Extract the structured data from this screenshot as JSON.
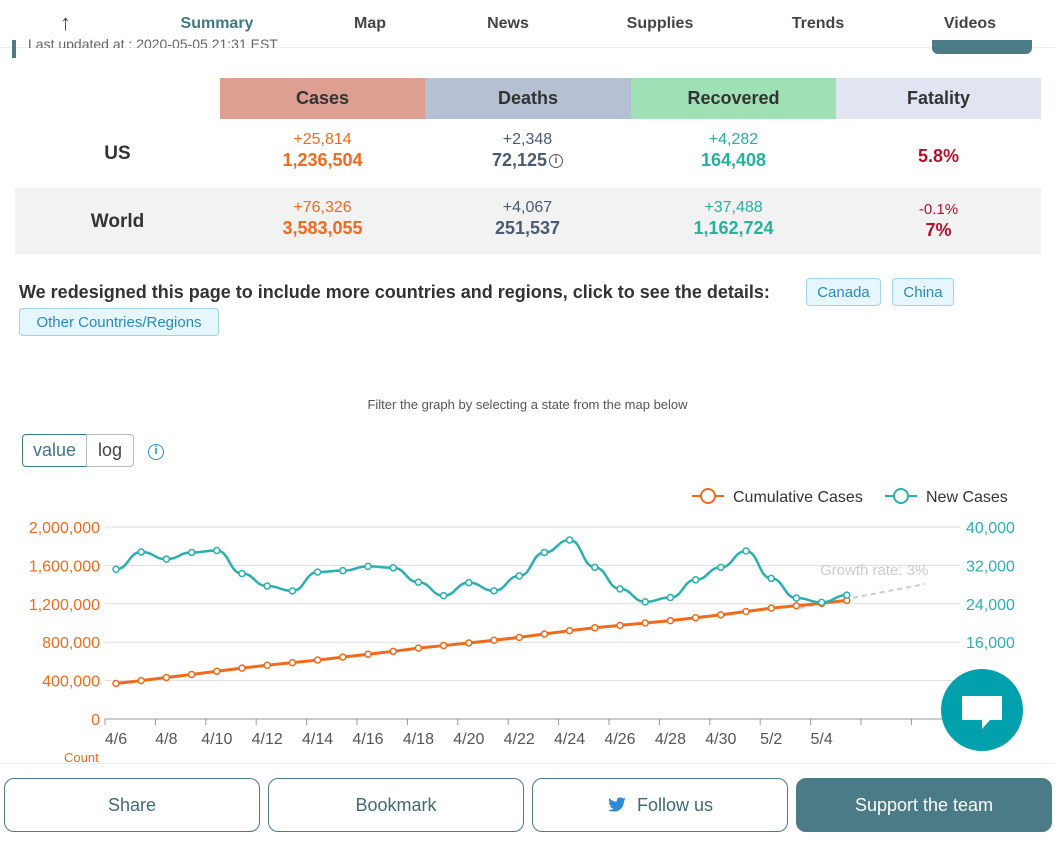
{
  "nav": {
    "items": [
      "Summary",
      "Map",
      "News",
      "Supplies",
      "Trends",
      "Videos"
    ],
    "active": "Summary",
    "updated_text": "Last updated at : 2020-05-05 21:31 EST"
  },
  "stats": {
    "headers": {
      "cases": "Cases",
      "deaths": "Deaths",
      "recovered": "Recovered",
      "fatality": "Fatality"
    },
    "header_colors": {
      "cases": "#dc9f92",
      "deaths": "#b5c0d3",
      "recovered": "#9fe0b5",
      "fatality": "#e1e5f2"
    },
    "us": {
      "label": "US",
      "cases_delta": "+25,814",
      "cases_total": "1,236,504",
      "deaths_delta": "+2,348",
      "deaths_total": "72,125",
      "recovered_delta": "+4,282",
      "recovered_total": "164,408",
      "fatality": "5.8%"
    },
    "world": {
      "label": "World",
      "cases_delta": "+76,326",
      "cases_total": "3,583,055",
      "deaths_delta": "+4,067",
      "deaths_total": "251,537",
      "recovered_delta": "+37,488",
      "recovered_total": "1,162,724",
      "fatality_delta": "-0.1%",
      "fatality": "7%"
    }
  },
  "redesign": {
    "text": "We redesigned this page to include more countries and regions, click to see the details:",
    "links": [
      "Canada",
      "China",
      "Other Countries/Regions"
    ]
  },
  "filter_note": "Filter the graph by selecting a state from the map below",
  "scale_toggle": {
    "value_label": "value",
    "log_label": "log",
    "active": "value"
  },
  "footer": {
    "share": "Share",
    "bookmark": "Bookmark",
    "follow": "Follow us",
    "support": "Support the team"
  },
  "chart_data": {
    "type": "line",
    "x": [
      "4/6",
      "4/7",
      "4/8",
      "4/9",
      "4/10",
      "4/11",
      "4/12",
      "4/13",
      "4/14",
      "4/15",
      "4/16",
      "4/17",
      "4/18",
      "4/19",
      "4/20",
      "4/21",
      "4/22",
      "4/23",
      "4/24",
      "4/25",
      "4/26",
      "4/27",
      "4/28",
      "4/29",
      "4/30",
      "5/1",
      "5/2",
      "5/3",
      "5/4",
      "5/5"
    ],
    "x_tick_labels": [
      "4/6",
      "4/8",
      "4/10",
      "4/12",
      "4/14",
      "4/16",
      "4/18",
      "4/20",
      "4/22",
      "4/24",
      "4/26",
      "4/28",
      "4/30",
      "5/2",
      "5/4"
    ],
    "legend": [
      "Cumulative Cases",
      "New Cases"
    ],
    "legend_placement": "top-right",
    "y_left": {
      "ticks": [
        "0",
        "400,000",
        "800,000",
        "1,200,000",
        "1,600,000",
        "2,000,000"
      ],
      "range": [
        0,
        2000000
      ],
      "label": "Count",
      "color": "#f16a1b"
    },
    "y_right": {
      "ticks": [
        "16,000",
        "24,000",
        "32,000",
        "40,000"
      ],
      "range": [
        0,
        40000
      ],
      "color": "#2ab0b0"
    },
    "annotation": "Growth rate: 3%",
    "series": [
      {
        "name": "Cumulative Cases",
        "axis": "left",
        "color": "#f16a1b",
        "values": [
          370000,
          400000,
          432000,
          464000,
          497000,
          530000,
          560000,
          587000,
          614000,
          645000,
          675000,
          705000,
          738000,
          765000,
          792000,
          820000,
          850000,
          885000,
          920000,
          950000,
          975000,
          1000000,
          1025000,
          1055000,
          1085000,
          1120000,
          1155000,
          1180000,
          1205000,
          1236000
        ]
      },
      {
        "name": "New Cases",
        "axis": "right",
        "color": "#2ab0b0",
        "values": [
          31200,
          34800,
          33300,
          34700,
          35100,
          30300,
          27700,
          26700,
          30600,
          30900,
          31800,
          31500,
          28500,
          25700,
          28400,
          26700,
          29800,
          34700,
          37300,
          31600,
          27100,
          24400,
          25300,
          29000,
          31600,
          35000,
          29300,
          25200,
          24300,
          25800
        ]
      }
    ],
    "grid": true
  }
}
